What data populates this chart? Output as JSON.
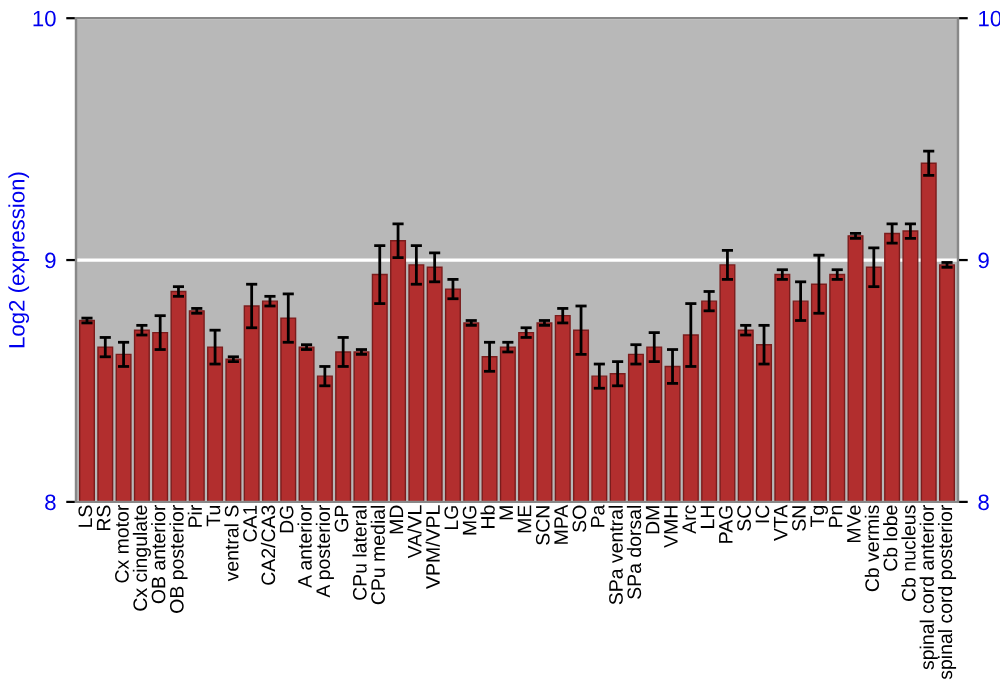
{
  "chart_data": {
    "type": "bar",
    "ylabel": "Log2 (expression)",
    "color": "#b22e2e",
    "categories": [
      "LS",
      "RS",
      "Cx motor",
      "Cx cingulate",
      "OB anterior",
      "OB posterior",
      "Pir",
      "Tu",
      "ventral S",
      "CA1",
      "CA2/CA3",
      "DG",
      "A anterior",
      "A posterior",
      "GP",
      "CPu lateral",
      "CPu medial",
      "MD",
      "VA/VL",
      "VPM/VPL",
      "LG",
      "MG",
      "Hb",
      "M",
      "ME",
      "SCN",
      "MPA",
      "SO",
      "Pa",
      "SPa ventral",
      "SPa dorsal",
      "DM",
      "VMH",
      "Arc",
      "LH",
      "PAG",
      "SC",
      "IC",
      "VTA",
      "SN",
      "Tg",
      "Pn",
      "MVe",
      "Cb vermis",
      "Cb lobe",
      "Cb nucleus",
      "spinal cord anterior",
      "spinal cord posterior"
    ],
    "values": [
      8.75,
      8.64,
      8.61,
      8.71,
      8.7,
      8.87,
      8.79,
      8.64,
      8.59,
      8.81,
      8.83,
      8.76,
      8.64,
      8.52,
      8.62,
      8.62,
      8.94,
      9.08,
      8.98,
      8.97,
      8.88,
      8.74,
      8.6,
      8.64,
      8.7,
      8.74,
      8.77,
      8.71,
      8.52,
      8.53,
      8.61,
      8.64,
      8.56,
      8.69,
      8.83,
      8.98,
      8.71,
      8.65,
      8.94,
      8.83,
      8.9,
      8.94,
      9.1,
      8.97,
      9.11,
      9.12,
      9.4,
      8.98
    ],
    "errors": [
      0.01,
      0.04,
      0.05,
      0.02,
      0.07,
      0.02,
      0.01,
      0.07,
      0.01,
      0.09,
      0.02,
      0.1,
      0.01,
      0.04,
      0.06,
      0.01,
      0.12,
      0.07,
      0.08,
      0.06,
      0.04,
      0.01,
      0.06,
      0.02,
      0.02,
      0.01,
      0.03,
      0.1,
      0.05,
      0.05,
      0.04,
      0.06,
      0.07,
      0.13,
      0.04,
      0.06,
      0.02,
      0.08,
      0.02,
      0.08,
      0.12,
      0.02,
      0.01,
      0.08,
      0.04,
      0.03,
      0.05,
      0.01
    ],
    "ylim": [
      8,
      10
    ],
    "yticks": [
      8,
      9,
      10
    ],
    "y2lim": [
      8,
      10
    ],
    "y2ticks": [
      8,
      9,
      10
    ],
    "grid": "y"
  }
}
